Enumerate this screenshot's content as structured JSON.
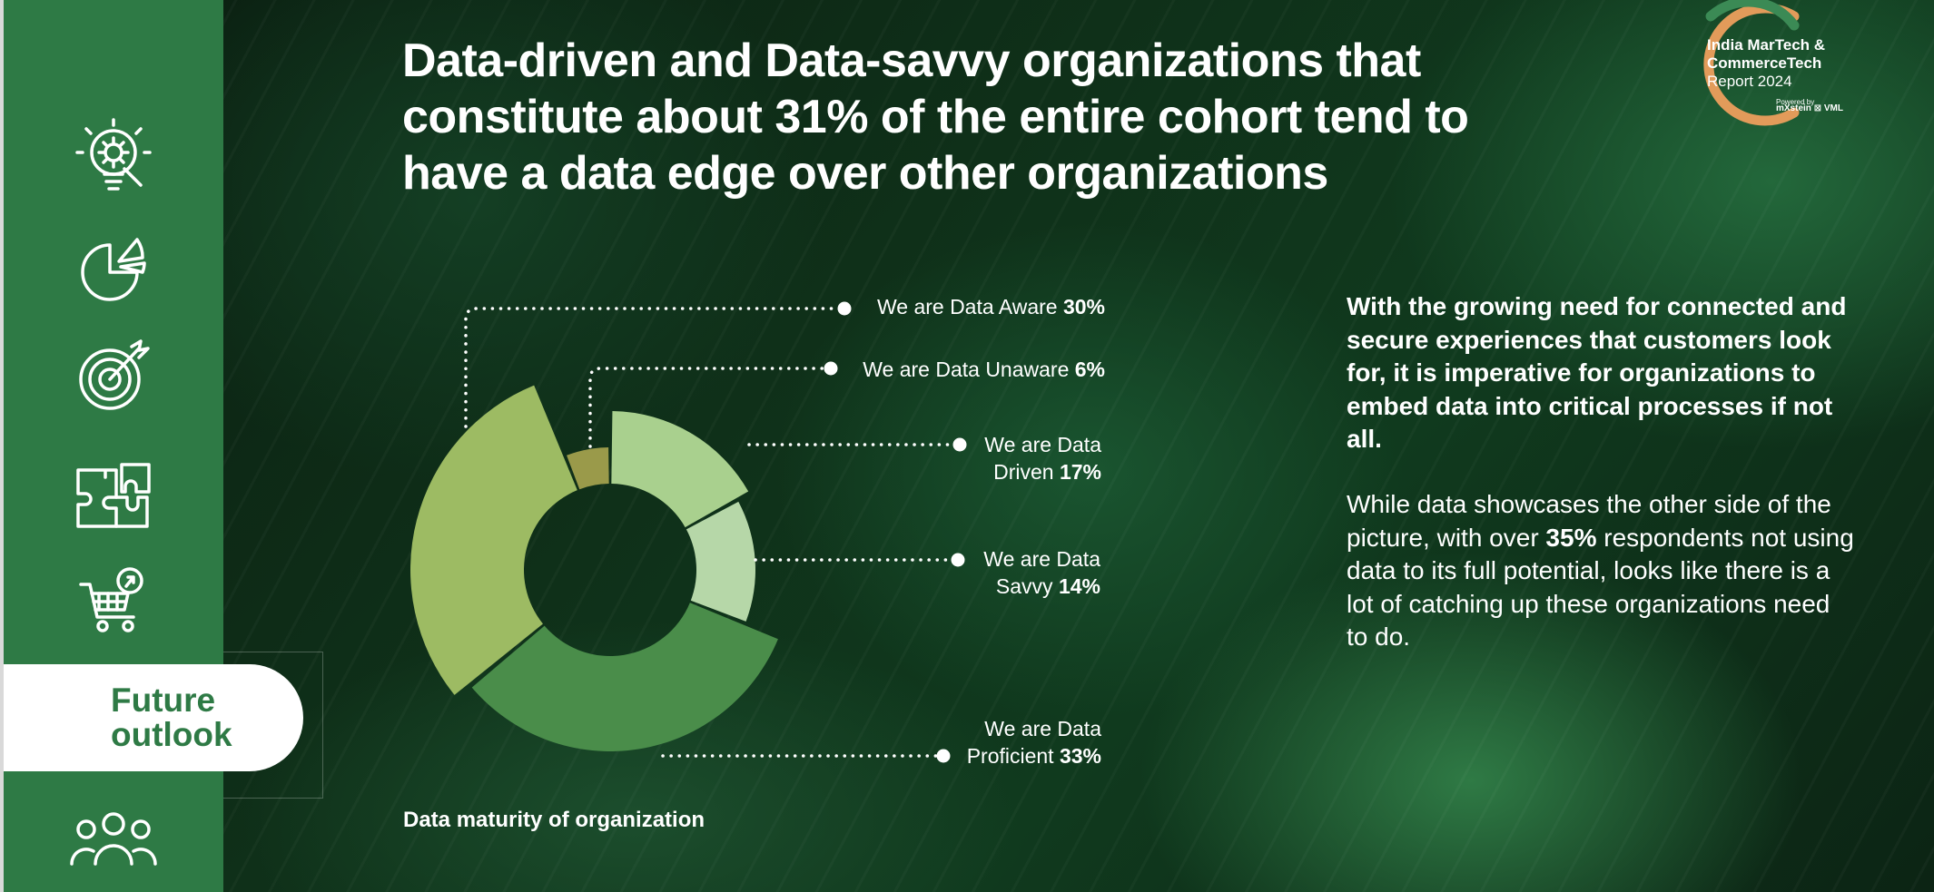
{
  "header": {
    "title_part1": "Data-driven and Data-savvy organizations that constitute about ",
    "title_highlight": "31%",
    "title_part2": " of the entire cohort tend to have a data edge over other organizations"
  },
  "logo": {
    "line1": "India MarTech &",
    "line2": "CommerceTech",
    "line3": "Report 2024",
    "powered_by": "Powered by",
    "brands": "mXstein ⊠ VML",
    "colors": {
      "ring_orange": "#e29b5a",
      "ring_green": "#3b8a55"
    }
  },
  "sidebar": {
    "icons": [
      "lightbulb-gear-icon",
      "pie-chart-icon",
      "target-icon",
      "puzzle-icon",
      "shopping-cart-icon",
      "people-icon"
    ],
    "active_item": {
      "line1": "Future",
      "line2": "outlook"
    },
    "colors": {
      "background": "#2e7a45",
      "active_text": "#2e7a45"
    }
  },
  "chart_data": {
    "type": "pie",
    "variant": "donut",
    "title": "Data maturity of organization",
    "series": [
      {
        "prefix": "We are Data",
        "name": "Driven",
        "value": 17,
        "color": "#a9d08e",
        "rOuter": 175
      },
      {
        "prefix": "We are Data",
        "name": "Savvy",
        "value": 14,
        "color": "#b6d7a8",
        "rOuter": 160
      },
      {
        "prefix": "We are Data",
        "name": "Proficient",
        "value": 33,
        "color": "#4a8d4a",
        "rOuter": 200
      },
      {
        "prefix": "We are Data",
        "name": "Aware",
        "value": 30,
        "color": "#9dbb63",
        "rOuter": 220
      },
      {
        "prefix": "We are Data",
        "name": "Unaware",
        "value": 6,
        "color": "#9a9a4a",
        "rOuter": 135
      }
    ]
  },
  "labels": {
    "aware": {
      "text": "We are Data Aware ",
      "value": "30%"
    },
    "unaware": {
      "text": "We are Data Unaware ",
      "value": "6%"
    },
    "driven": {
      "line1": "We are Data",
      "line2": "Driven ",
      "value": "17%"
    },
    "savvy": {
      "line1": "We are Data",
      "line2": "Savvy ",
      "value": "14%"
    },
    "proficient": {
      "line1": "We are Data",
      "line2": "Proficient ",
      "value": "33%"
    }
  },
  "body": {
    "para1": "With the growing need for connected and secure experiences that customers look for, it is imperative for organizations to embed data into critical processes if not all.",
    "para2_part1": "While data showcases the other side of the picture, with over ",
    "para2_highlight": "35%",
    "para2_part2": " respondents not using data to its full potential, looks like there is a lot of catching up these organizations need to do."
  }
}
